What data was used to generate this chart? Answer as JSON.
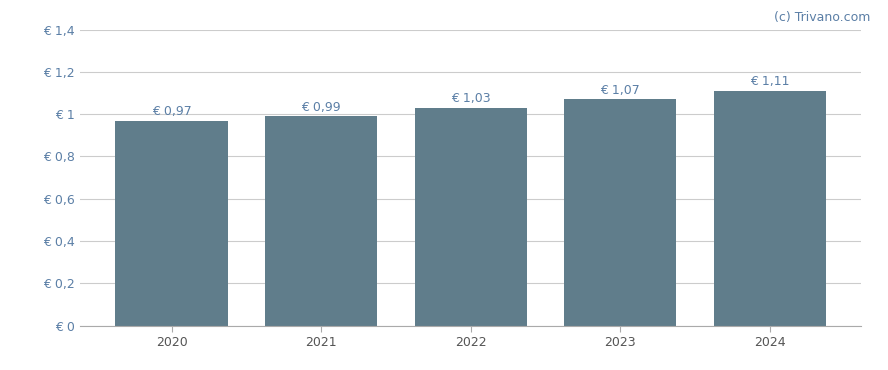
{
  "categories": [
    "2020",
    "2021",
    "2022",
    "2023",
    "2024"
  ],
  "values": [
    0.97,
    0.99,
    1.03,
    1.07,
    1.11
  ],
  "bar_color": "#607d8b",
  "bar_width": 0.75,
  "ylim": [
    0,
    1.4
  ],
  "yticks": [
    0,
    0.2,
    0.4,
    0.6,
    0.8,
    1.0,
    1.2,
    1.4
  ],
  "ytick_labels": [
    "€ 0",
    "€ 0,2",
    "€ 0,4",
    "€ 0,6",
    "€ 0,8",
    "€ 1",
    "€ 1,2",
    "€ 1,4"
  ],
  "bar_labels": [
    "€ 0,97",
    "€ 0,99",
    "€ 1,03",
    "€ 1,07",
    "€ 1,11"
  ],
  "watermark": "(c) Trivano.com",
  "watermark_color": "#5b7fa6",
  "background_color": "#ffffff",
  "grid_color": "#cccccc",
  "bar_label_fontsize": 9,
  "tick_fontsize": 9,
  "watermark_fontsize": 9,
  "label_color": "#5b7fa6"
}
